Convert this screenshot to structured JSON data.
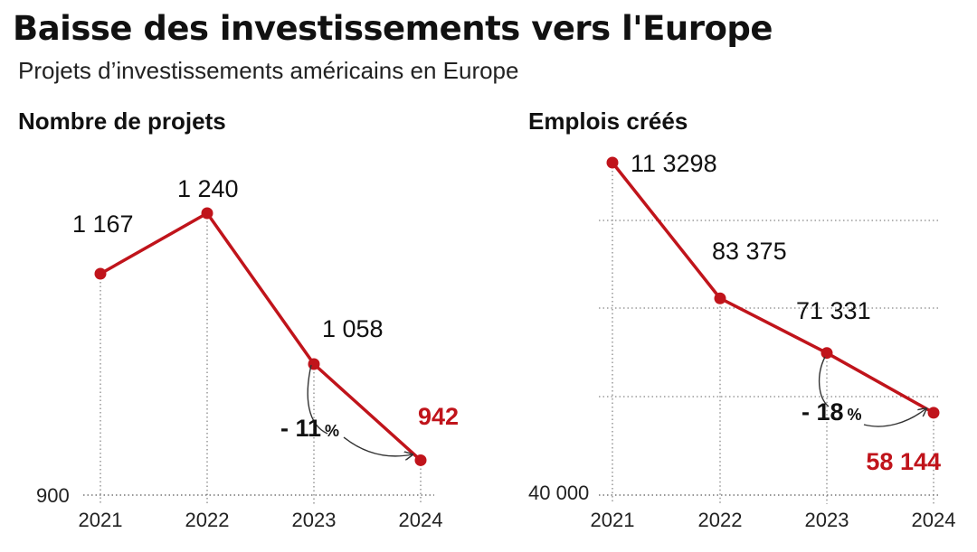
{
  "header": {
    "title": "Baisse des investissements vers l'Europe",
    "subtitle": "Projets d’investissements américains en Europe"
  },
  "colors": {
    "series": "#c0141b",
    "highlight": "#c0141b",
    "grid": "#888888"
  },
  "chart_data": [
    {
      "type": "line",
      "title": "Nombre de projets",
      "categories": [
        "2021",
        "2022",
        "2023",
        "2024"
      ],
      "values": [
        1167,
        1240,
        1058,
        942
      ],
      "data_labels": [
        "1 167",
        "1 240",
        "1 058",
        "942"
      ],
      "highlight_index": 3,
      "ylim": [
        900,
        1270
      ],
      "y_ticks": [
        900
      ],
      "y_tick_labels": [
        "900"
      ],
      "grid": "dotted vertical lines at each year",
      "change": {
        "from_index": 2,
        "to_index": 3,
        "value": "- 11",
        "unit": "%"
      }
    },
    {
      "type": "line",
      "title": "Emplois créés",
      "categories": [
        "2021",
        "2022",
        "2023",
        "2024"
      ],
      "values": [
        113298,
        83375,
        71331,
        58144
      ],
      "data_labels": [
        "11 3298",
        "83 375",
        "71 331",
        "58 144"
      ],
      "highlight_index": 3,
      "ylim": [
        40000,
        113298
      ],
      "y_ticks": [
        40000
      ],
      "y_tick_labels": [
        "40 000"
      ],
      "grid": "dotted horizontal and vertical gridlines",
      "change": {
        "from_index": 2,
        "to_index": 3,
        "value": "- 18",
        "unit": "%"
      }
    }
  ]
}
